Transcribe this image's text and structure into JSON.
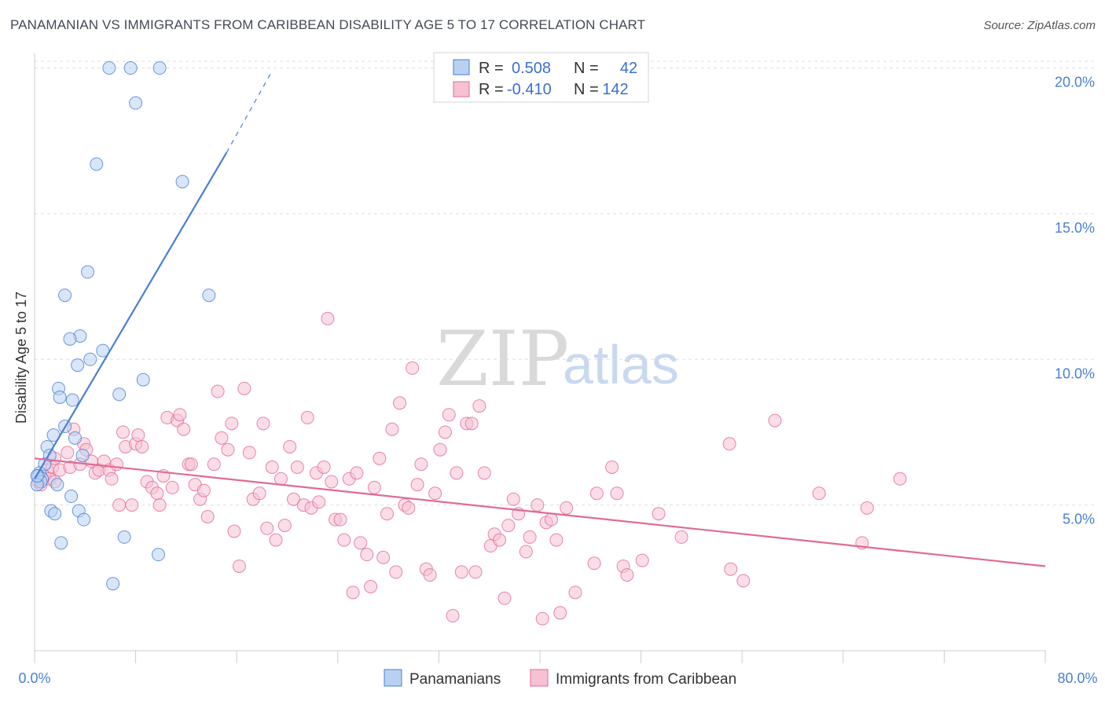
{
  "header": {
    "title": "PANAMANIAN VS IMMIGRANTS FROM CARIBBEAN DISABILITY AGE 5 TO 17 CORRELATION CHART",
    "source": "Source: ZipAtlas.com"
  },
  "watermark": {
    "zip": "ZIP",
    "atlas": "atlas"
  },
  "legend": {
    "r_label": "R =",
    "n_label": "N =",
    "series": [
      {
        "r": "0.508",
        "n": "42",
        "color": "#4a7fd4",
        "fill": "#b9d1f1"
      },
      {
        "r": "-0.410",
        "n": "142",
        "color": "#e06a96",
        "fill": "#f6c1d2"
      }
    ]
  },
  "bottom_legend": [
    "Panamanians",
    "Immigrants from Caribbean"
  ],
  "chart_data": {
    "type": "scatter",
    "title": "PANAMANIAN VS IMMIGRANTS FROM CARIBBEAN DISABILITY AGE 5 TO 17 CORRELATION CHART",
    "xlabel": "",
    "ylabel": "Disability Age 5 to 17",
    "xlim": [
      0,
      80
    ],
    "ylim": [
      0,
      20.5
    ],
    "x_ticks": [
      "0.0%",
      "80.0%"
    ],
    "y_ticks": [
      {
        "value": 5,
        "label": "5.0%"
      },
      {
        "value": 10,
        "label": "10.0%"
      },
      {
        "value": 15,
        "label": "15.0%"
      },
      {
        "value": 20,
        "label": "20.0%"
      }
    ],
    "grid": true,
    "series": [
      {
        "name": "Panamanians",
        "color": "#4a7fd4",
        "fill": "#b9d1f1",
        "r": 0.508,
        "n": 42,
        "trend": {
          "x0": 0,
          "y0": 5.9,
          "x1": 15.2,
          "y1": 17.1,
          "dash_to_x": 18.8,
          "dash_to_y": 19.9
        },
        "points": [
          [
            5.9,
            20.0
          ],
          [
            7.6,
            20.0
          ],
          [
            9.9,
            20.0
          ],
          [
            8.0,
            18.8
          ],
          [
            4.9,
            16.7
          ],
          [
            11.7,
            16.1
          ],
          [
            4.2,
            13.0
          ],
          [
            2.4,
            12.2
          ],
          [
            13.8,
            12.2
          ],
          [
            3.6,
            10.8
          ],
          [
            2.8,
            10.7
          ],
          [
            5.4,
            10.3
          ],
          [
            4.4,
            10.0
          ],
          [
            3.4,
            9.8
          ],
          [
            8.6,
            9.3
          ],
          [
            1.9,
            9.0
          ],
          [
            2.0,
            8.7
          ],
          [
            3.0,
            8.6
          ],
          [
            6.7,
            8.8
          ],
          [
            2.4,
            7.7
          ],
          [
            1.5,
            7.4
          ],
          [
            3.2,
            7.3
          ],
          [
            1.0,
            7.0
          ],
          [
            1.2,
            6.7
          ],
          [
            3.8,
            6.7
          ],
          [
            0.8,
            6.4
          ],
          [
            0.4,
            6.1
          ],
          [
            0.3,
            6.0
          ],
          [
            0.6,
            5.9
          ],
          [
            0.5,
            5.8
          ],
          [
            0.2,
            5.7
          ],
          [
            1.8,
            5.7
          ],
          [
            2.9,
            5.3
          ],
          [
            1.3,
            4.8
          ],
          [
            3.5,
            4.8
          ],
          [
            1.6,
            4.7
          ],
          [
            3.9,
            4.5
          ],
          [
            7.1,
            3.9
          ],
          [
            2.1,
            3.7
          ],
          [
            9.8,
            3.3
          ],
          [
            6.2,
            2.3
          ],
          [
            0.2,
            6.0
          ]
        ]
      },
      {
        "name": "Immigrants from Caribbean",
        "color": "#e06a96",
        "fill": "#f6c1d2",
        "r": -0.41,
        "n": 142,
        "trend": {
          "x0": 0,
          "y0": 6.6,
          "x1": 80,
          "y1": 2.9
        },
        "points": [
          [
            0.3,
            5.8
          ],
          [
            0.5,
            5.7
          ],
          [
            0.8,
            6.0
          ],
          [
            1.0,
            6.2
          ],
          [
            1.2,
            5.9
          ],
          [
            1.4,
            6.3
          ],
          [
            1.6,
            6.6
          ],
          [
            2.0,
            6.2
          ],
          [
            2.6,
            6.8
          ],
          [
            2.8,
            6.3
          ],
          [
            3.1,
            7.6
          ],
          [
            3.6,
            6.4
          ],
          [
            3.9,
            7.1
          ],
          [
            4.1,
            6.9
          ],
          [
            4.5,
            6.5
          ],
          [
            4.8,
            6.1
          ],
          [
            5.1,
            6.2
          ],
          [
            5.5,
            6.5
          ],
          [
            5.9,
            6.2
          ],
          [
            6.1,
            5.9
          ],
          [
            6.5,
            6.4
          ],
          [
            6.7,
            5.0
          ],
          [
            7.0,
            7.5
          ],
          [
            7.2,
            7.0
          ],
          [
            7.7,
            5.0
          ],
          [
            8.0,
            7.1
          ],
          [
            8.2,
            7.4
          ],
          [
            8.5,
            7.0
          ],
          [
            8.9,
            5.8
          ],
          [
            9.3,
            5.6
          ],
          [
            9.7,
            5.4
          ],
          [
            9.9,
            5.0
          ],
          [
            10.2,
            6.0
          ],
          [
            10.5,
            8.0
          ],
          [
            10.9,
            5.6
          ],
          [
            11.3,
            7.9
          ],
          [
            11.5,
            8.1
          ],
          [
            11.8,
            7.6
          ],
          [
            12.2,
            6.4
          ],
          [
            12.4,
            6.4
          ],
          [
            12.7,
            5.7
          ],
          [
            13.1,
            5.2
          ],
          [
            13.4,
            5.5
          ],
          [
            13.7,
            4.6
          ],
          [
            14.2,
            6.4
          ],
          [
            14.5,
            8.9
          ],
          [
            14.8,
            7.3
          ],
          [
            15.3,
            6.9
          ],
          [
            15.6,
            7.8
          ],
          [
            15.8,
            4.1
          ],
          [
            16.2,
            2.9
          ],
          [
            16.6,
            9.0
          ],
          [
            17.0,
            6.8
          ],
          [
            17.3,
            5.2
          ],
          [
            17.8,
            5.4
          ],
          [
            18.1,
            7.8
          ],
          [
            18.4,
            4.2
          ],
          [
            18.8,
            6.3
          ],
          [
            19.1,
            3.8
          ],
          [
            19.5,
            5.9
          ],
          [
            19.8,
            4.3
          ],
          [
            20.2,
            7.0
          ],
          [
            20.5,
            5.2
          ],
          [
            20.8,
            6.3
          ],
          [
            21.3,
            5.0
          ],
          [
            21.6,
            8.0
          ],
          [
            21.9,
            4.9
          ],
          [
            22.3,
            6.1
          ],
          [
            22.5,
            5.1
          ],
          [
            22.9,
            6.3
          ],
          [
            23.2,
            11.4
          ],
          [
            23.5,
            5.8
          ],
          [
            23.8,
            4.5
          ],
          [
            24.2,
            4.5
          ],
          [
            24.5,
            3.8
          ],
          [
            24.9,
            5.9
          ],
          [
            25.2,
            2.0
          ],
          [
            25.5,
            6.1
          ],
          [
            25.8,
            3.7
          ],
          [
            26.3,
            3.3
          ],
          [
            26.6,
            2.2
          ],
          [
            26.9,
            5.6
          ],
          [
            27.3,
            6.6
          ],
          [
            27.6,
            3.2
          ],
          [
            27.9,
            4.7
          ],
          [
            28.3,
            7.6
          ],
          [
            28.6,
            2.7
          ],
          [
            28.9,
            8.5
          ],
          [
            29.3,
            5.0
          ],
          [
            29.6,
            4.9
          ],
          [
            29.9,
            9.7
          ],
          [
            30.3,
            5.7
          ],
          [
            30.6,
            6.4
          ],
          [
            31.0,
            2.8
          ],
          [
            31.3,
            2.6
          ],
          [
            31.7,
            5.4
          ],
          [
            32.1,
            6.9
          ],
          [
            32.5,
            7.5
          ],
          [
            32.8,
            8.1
          ],
          [
            33.1,
            1.2
          ],
          [
            33.4,
            6.1
          ],
          [
            33.8,
            2.7
          ],
          [
            34.2,
            7.8
          ],
          [
            34.6,
            7.8
          ],
          [
            34.9,
            2.7
          ],
          [
            35.2,
            8.4
          ],
          [
            35.6,
            6.1
          ],
          [
            36.1,
            3.6
          ],
          [
            36.4,
            4.0
          ],
          [
            36.8,
            3.8
          ],
          [
            37.2,
            1.8
          ],
          [
            37.5,
            4.3
          ],
          [
            37.9,
            5.2
          ],
          [
            38.3,
            4.7
          ],
          [
            38.9,
            3.4
          ],
          [
            39.2,
            3.9
          ],
          [
            39.8,
            5.0
          ],
          [
            40.2,
            1.1
          ],
          [
            40.5,
            4.4
          ],
          [
            40.9,
            4.5
          ],
          [
            41.3,
            3.8
          ],
          [
            41.6,
            1.3
          ],
          [
            42.1,
            4.9
          ],
          [
            42.8,
            2.0
          ],
          [
            44.3,
            3.0
          ],
          [
            44.5,
            5.4
          ],
          [
            45.7,
            6.3
          ],
          [
            46.1,
            5.4
          ],
          [
            46.6,
            2.9
          ],
          [
            46.9,
            2.6
          ],
          [
            48.1,
            3.1
          ],
          [
            49.4,
            4.7
          ],
          [
            51.2,
            3.9
          ],
          [
            55.0,
            7.1
          ],
          [
            55.1,
            2.8
          ],
          [
            56.1,
            2.4
          ],
          [
            58.6,
            7.9
          ],
          [
            62.1,
            5.4
          ],
          [
            65.5,
            3.7
          ],
          [
            65.9,
            4.9
          ],
          [
            68.5,
            5.9
          ],
          [
            1.6,
            5.8
          ]
        ]
      }
    ]
  }
}
